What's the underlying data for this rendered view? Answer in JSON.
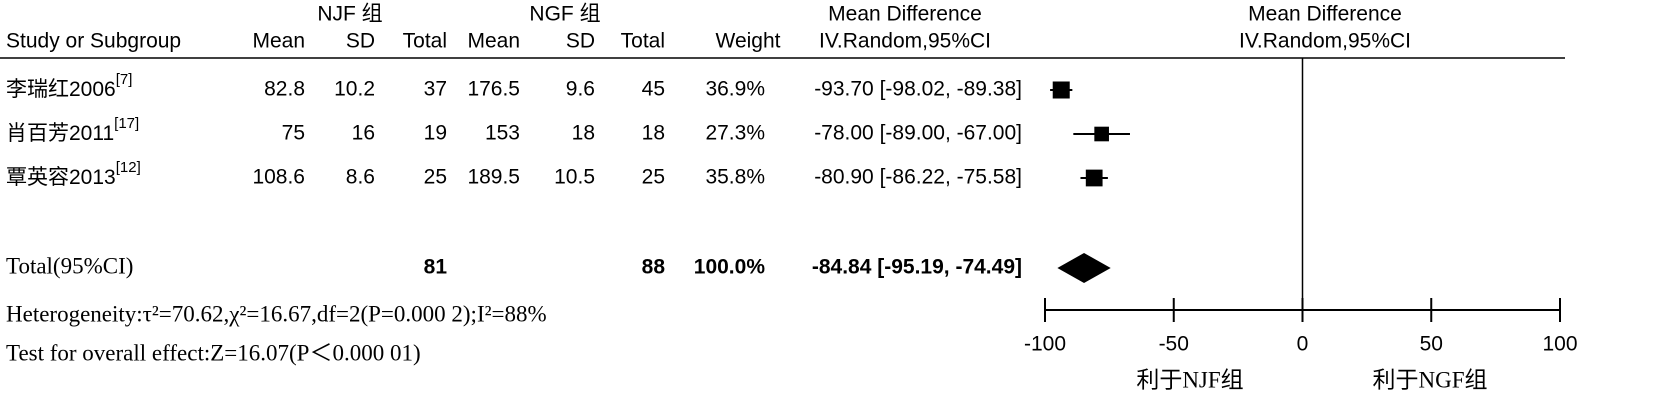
{
  "chart_data": {
    "type": "forest",
    "group_headers": [
      "NJF 组",
      "NGF 组"
    ],
    "effect_header": "Mean Difference",
    "effect_method": "IV.Random,95%CI",
    "columns": [
      "Study or Subgroup",
      "Mean",
      "SD",
      "Total",
      "Mean",
      "SD",
      "Total",
      "Weight"
    ],
    "studies": [
      {
        "name": "李瑞红2006",
        "ref": "[7]",
        "njf_mean": 82.8,
        "njf_sd": 10.2,
        "njf_total": 37,
        "ngf_mean": 176.5,
        "ngf_sd": 9.6,
        "ngf_total": 45,
        "weight": 36.9,
        "weight_label": "36.9%",
        "md": -93.7,
        "ci_low": -98.02,
        "ci_high": -89.38,
        "ci_label": "-93.70 [-98.02, -89.38]"
      },
      {
        "name": "肖百芳2011",
        "ref": "[17]",
        "njf_mean": 75,
        "njf_sd": 16,
        "njf_total": 19,
        "ngf_mean": 153,
        "ngf_sd": 18,
        "ngf_total": 18,
        "weight": 27.3,
        "weight_label": "27.3%",
        "md": -78.0,
        "ci_low": -89.0,
        "ci_high": -67.0,
        "ci_label": "-78.00 [-89.00, -67.00]"
      },
      {
        "name": "覃英容2013",
        "ref": "[12]",
        "njf_mean": 108.6,
        "njf_sd": 8.6,
        "njf_total": 25,
        "ngf_mean": 189.5,
        "ngf_sd": 10.5,
        "ngf_total": 25,
        "weight": 35.8,
        "weight_label": "35.8%",
        "md": -80.9,
        "ci_low": -86.22,
        "ci_high": -75.58,
        "ci_label": "-80.90 [-86.22, -75.58]"
      }
    ],
    "total": {
      "name": "Total(95%CI)",
      "njf_total": 81,
      "ngf_total": 88,
      "weight": 100,
      "weight_label": "100.0%",
      "md": -84.84,
      "ci_low": -95.19,
      "ci_high": -74.49,
      "ci_label": "-84.84 [-95.19, -74.49]"
    },
    "heterogeneity": "Heterogeneity:τ²=70.62,χ²=16.67,df=2(P=0.000 2);I²=88%",
    "overall_effect": "Test for overall effect:Z=16.07(P＜0.000 01)",
    "xlim": [
      -100,
      100
    ],
    "xticks": [
      -100,
      -50,
      0,
      50,
      100
    ],
    "favours": [
      "利于NJF组",
      "利于NGF组"
    ],
    "color": "#000000"
  }
}
